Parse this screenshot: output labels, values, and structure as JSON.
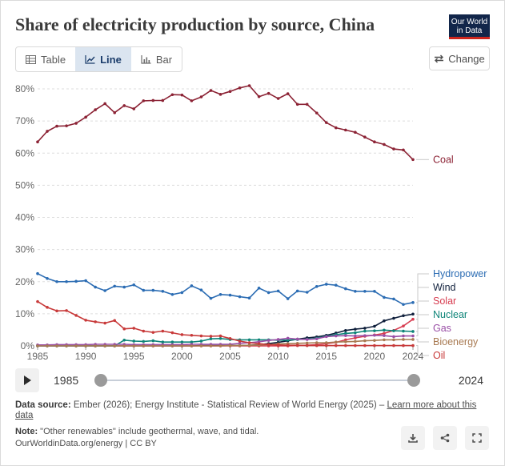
{
  "title": "Share of electricity production by source, China",
  "logo": {
    "line1": "Our World",
    "line2": "in Data"
  },
  "tabs": [
    {
      "label": "Table"
    },
    {
      "label": "Line"
    },
    {
      "label": "Bar"
    }
  ],
  "change_label": "Change",
  "timeline": {
    "start": "1985",
    "end": "2024"
  },
  "sources": {
    "label": "Data source:",
    "text": "Ember (2026); Energy Institute - Statistical Review of World Energy (2025) –",
    "link": "Learn more about this data"
  },
  "note": {
    "label": "Note:",
    "text": "\"Other renewables\" include geothermal, wave, and tidal."
  },
  "attribution": "OurWorldinData.org/energy | CC BY",
  "colors": {
    "accent": "#12264a",
    "brand_red": "#ce261e"
  },
  "chart_data": {
    "type": "line",
    "title": "Share of electricity production by source, China",
    "x": [
      1985,
      1986,
      1987,
      1988,
      1989,
      1990,
      1991,
      1992,
      1993,
      1994,
      1995,
      1996,
      1997,
      1998,
      1999,
      2000,
      2001,
      2002,
      2003,
      2004,
      2005,
      2006,
      2007,
      2008,
      2009,
      2010,
      2011,
      2012,
      2013,
      2014,
      2015,
      2016,
      2017,
      2018,
      2019,
      2020,
      2021,
      2022,
      2023,
      2024
    ],
    "xticks": [
      1985,
      1990,
      1995,
      2000,
      2005,
      2010,
      2015,
      2020,
      2024
    ],
    "yticks": [
      0,
      10,
      20,
      30,
      40,
      50,
      60,
      70,
      80
    ],
    "ytick_labels": [
      "0%",
      "10%",
      "20%",
      "30%",
      "40%",
      "50%",
      "60%",
      "70%",
      "80%"
    ],
    "ylim": [
      0,
      82
    ],
    "xlabel": "",
    "ylabel": "",
    "series": [
      {
        "name": "Coal",
        "color": "#8c2335",
        "values": [
          63.5,
          66.8,
          68.4,
          68.5,
          69.3,
          71.2,
          73.5,
          75.4,
          72.6,
          74.8,
          73.8,
          76.3,
          76.4,
          76.4,
          78.2,
          78.1,
          76.3,
          77.5,
          79.5,
          78.3,
          79.2,
          80.3,
          81.0,
          77.6,
          78.6,
          77.0,
          78.5,
          75.2,
          75.2,
          72.5,
          69.5,
          67.9,
          67.2,
          66.5,
          65.0,
          63.5,
          62.7,
          61.3,
          61.0,
          58.0
        ]
      },
      {
        "name": "Hydropower",
        "color": "#2b6cb3",
        "values": [
          22.5,
          21.0,
          20.0,
          20.0,
          20.1,
          20.3,
          18.3,
          17.2,
          18.6,
          18.3,
          19.0,
          17.3,
          17.3,
          17.0,
          16.0,
          16.6,
          18.7,
          17.4,
          14.8,
          16.0,
          15.8,
          15.3,
          14.9,
          18.0,
          16.6,
          17.1,
          14.7,
          17.1,
          16.7,
          18.5,
          19.2,
          18.9,
          17.8,
          17.0,
          17.0,
          17.0,
          15.1,
          14.6,
          12.9,
          13.5
        ]
      },
      {
        "name": "Wind",
        "color": "#10203c",
        "values": [
          0,
          0,
          0,
          0,
          0,
          0,
          0,
          0,
          0,
          0,
          0,
          0,
          0,
          0,
          0,
          0,
          0,
          0.1,
          0.1,
          0.1,
          0.1,
          0.1,
          0.2,
          0.4,
          0.7,
          1.1,
          1.6,
          2.1,
          2.5,
          2.8,
          3.3,
          4.0,
          4.8,
          5.2,
          5.5,
          6.1,
          7.8,
          8.6,
          9.4,
          9.9
        ]
      },
      {
        "name": "Solar",
        "color": "#d73c50",
        "values": [
          0,
          0,
          0,
          0,
          0,
          0,
          0,
          0,
          0,
          0,
          0,
          0,
          0,
          0,
          0,
          0,
          0,
          0,
          0,
          0,
          0,
          0,
          0,
          0,
          0,
          0,
          0,
          0.1,
          0.2,
          0.4,
          0.7,
          1.1,
          1.9,
          2.5,
          3.0,
          3.4,
          3.9,
          4.8,
          6.2,
          8.3
        ]
      },
      {
        "name": "Nuclear",
        "color": "#0e8478",
        "values": [
          0,
          0,
          0,
          0,
          0,
          0,
          0,
          0,
          0,
          1.8,
          1.5,
          1.4,
          1.6,
          1.2,
          1.2,
          1.2,
          1.2,
          1.5,
          2.2,
          2.3,
          2.0,
          1.9,
          1.9,
          1.9,
          1.9,
          1.8,
          1.8,
          2.0,
          2.1,
          2.4,
          3.0,
          3.5,
          3.9,
          4.1,
          4.6,
          4.7,
          4.9,
          4.7,
          4.6,
          4.5
        ]
      },
      {
        "name": "Gas",
        "color": "#9a4fa6",
        "values": [
          0.3,
          0.3,
          0.4,
          0.4,
          0.4,
          0.4,
          0.5,
          0.5,
          0.5,
          0.5,
          0.4,
          0.4,
          0.4,
          0.4,
          0.4,
          0.4,
          0.5,
          0.5,
          0.5,
          0.5,
          0.5,
          0.8,
          1.0,
          1.3,
          1.7,
          2.0,
          2.4,
          2.1,
          2.0,
          2.2,
          2.9,
          3.1,
          3.2,
          3.1,
          3.2,
          3.3,
          3.2,
          2.9,
          3.1,
          3.1
        ]
      },
      {
        "name": "Bioenergy",
        "color": "#a87a52",
        "values": [
          0,
          0,
          0,
          0,
          0,
          0,
          0,
          0,
          0,
          0,
          0,
          0,
          0,
          0,
          0,
          0,
          0,
          0,
          0,
          0,
          0.1,
          0.1,
          0.2,
          0.3,
          0.4,
          0.6,
          0.7,
          0.8,
          0.9,
          1.0,
          1.0,
          1.2,
          1.3,
          1.4,
          1.6,
          1.7,
          1.9,
          1.9,
          2.0,
          2.0
        ]
      },
      {
        "name": "Oil",
        "color": "#c83a3a",
        "values": [
          13.8,
          12.0,
          10.9,
          11.0,
          9.5,
          8.0,
          7.5,
          7.1,
          7.9,
          5.3,
          5.5,
          4.6,
          4.2,
          4.6,
          4.1,
          3.5,
          3.3,
          3.1,
          3.0,
          3.1,
          2.3,
          1.5,
          1.0,
          0.7,
          0.4,
          0.3,
          0.2,
          0.2,
          0.1,
          0.1,
          0.1,
          0.1,
          0.1,
          0.1,
          0.1,
          0.1,
          0.1,
          0.1,
          0.1,
          0.1
        ]
      }
    ]
  }
}
